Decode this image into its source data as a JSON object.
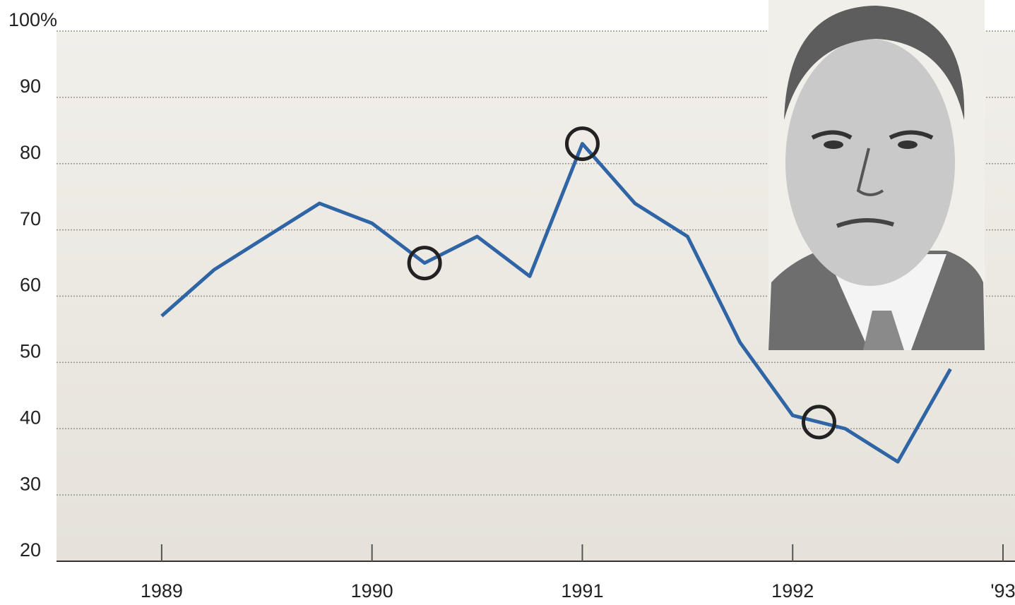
{
  "chart_data": {
    "type": "line",
    "x": [
      1989,
      1989.25,
      1989.5,
      1989.75,
      1990,
      1990.25,
      1990.5,
      1990.75,
      1991,
      1991.25,
      1991.5,
      1991.75,
      1992,
      1992.25,
      1992.5,
      1992.75
    ],
    "values": [
      57,
      64,
      69,
      74,
      71,
      65,
      69,
      63,
      83,
      74,
      69,
      53,
      42,
      40,
      35,
      49
    ],
    "color": "#2f65a5",
    "xlim": [
      1988.5,
      1993
    ],
    "xticks": [
      1989,
      1990,
      1991,
      1992,
      {
        "value": 1993,
        "label": "'93"
      }
    ],
    "ylim": [
      20,
      100
    ],
    "yticks": [
      20,
      30,
      40,
      50,
      60,
      70,
      80,
      90,
      {
        "value": 100,
        "label": "100%"
      }
    ],
    "grid": true
  }
}
